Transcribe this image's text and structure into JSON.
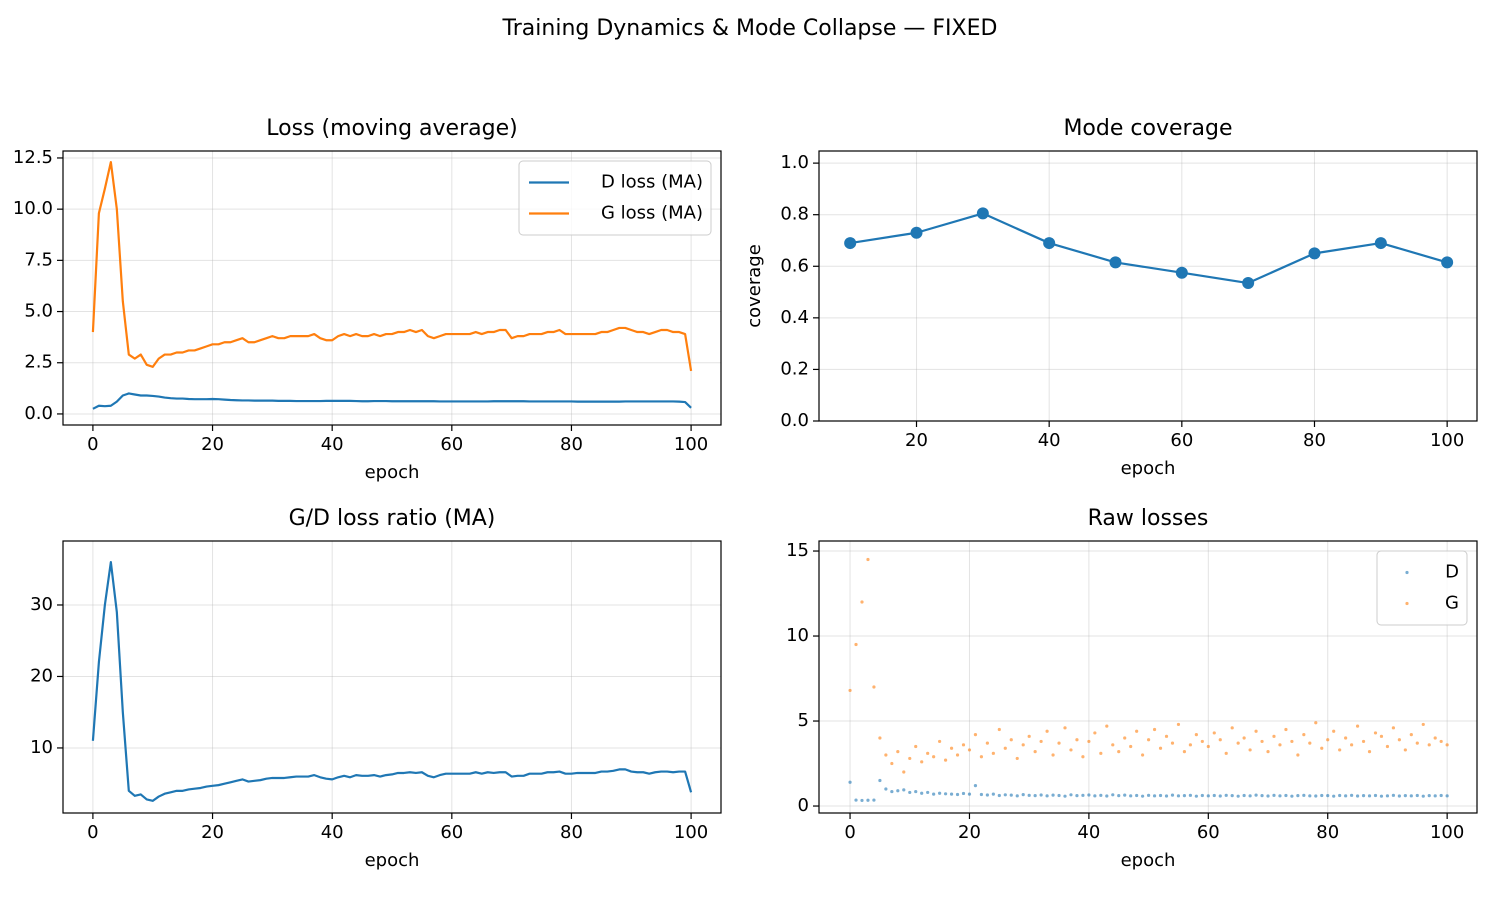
{
  "title": "Training Dynamics & Mode Collapse — FIXED",
  "chart_data": [
    {
      "type": "line",
      "title": "Loss (moving average)",
      "xlabel": "epoch",
      "x": [
        0,
        1,
        2,
        3,
        4,
        5,
        6,
        7,
        8,
        9,
        10,
        11,
        12,
        13,
        14,
        15,
        16,
        17,
        18,
        19,
        20,
        21,
        22,
        23,
        24,
        25,
        26,
        27,
        28,
        29,
        30,
        31,
        32,
        33,
        34,
        35,
        36,
        37,
        38,
        39,
        40,
        41,
        42,
        43,
        44,
        45,
        46,
        47,
        48,
        49,
        50,
        51,
        52,
        53,
        54,
        55,
        56,
        57,
        58,
        59,
        60,
        61,
        62,
        63,
        64,
        65,
        66,
        67,
        68,
        69,
        70,
        71,
        72,
        73,
        74,
        75,
        76,
        77,
        78,
        79,
        80,
        81,
        82,
        83,
        84,
        85,
        86,
        87,
        88,
        89,
        90,
        91,
        92,
        93,
        94,
        95,
        96,
        97,
        98,
        99,
        100
      ],
      "series": [
        {
          "name": "D loss (MA)",
          "color": "#1f77b4",
          "values": [
            0.25,
            0.4,
            0.38,
            0.4,
            0.6,
            0.9,
            1.0,
            0.95,
            0.9,
            0.9,
            0.88,
            0.85,
            0.8,
            0.77,
            0.75,
            0.75,
            0.73,
            0.72,
            0.72,
            0.72,
            0.73,
            0.72,
            0.7,
            0.68,
            0.67,
            0.66,
            0.66,
            0.65,
            0.65,
            0.65,
            0.65,
            0.64,
            0.64,
            0.64,
            0.63,
            0.63,
            0.63,
            0.63,
            0.63,
            0.64,
            0.64,
            0.64,
            0.64,
            0.64,
            0.63,
            0.62,
            0.62,
            0.63,
            0.63,
            0.63,
            0.62,
            0.62,
            0.62,
            0.62,
            0.62,
            0.62,
            0.62,
            0.62,
            0.61,
            0.61,
            0.61,
            0.61,
            0.61,
            0.61,
            0.61,
            0.61,
            0.61,
            0.62,
            0.62,
            0.62,
            0.62,
            0.62,
            0.62,
            0.61,
            0.61,
            0.61,
            0.61,
            0.61,
            0.61,
            0.61,
            0.61,
            0.6,
            0.6,
            0.6,
            0.6,
            0.6,
            0.6,
            0.6,
            0.6,
            0.61,
            0.61,
            0.61,
            0.61,
            0.61,
            0.61,
            0.61,
            0.61,
            0.61,
            0.6,
            0.58,
            0.3
          ]
        },
        {
          "name": "G loss (MA)",
          "color": "#ff7f0e",
          "values": [
            4.0,
            9.8,
            11.0,
            12.3,
            10.0,
            5.5,
            2.9,
            2.7,
            2.9,
            2.4,
            2.3,
            2.7,
            2.9,
            2.9,
            3.0,
            3.0,
            3.1,
            3.1,
            3.2,
            3.3,
            3.4,
            3.4,
            3.5,
            3.5,
            3.6,
            3.7,
            3.5,
            3.5,
            3.6,
            3.7,
            3.8,
            3.7,
            3.7,
            3.8,
            3.8,
            3.8,
            3.8,
            3.9,
            3.7,
            3.6,
            3.6,
            3.8,
            3.9,
            3.8,
            3.9,
            3.8,
            3.8,
            3.9,
            3.8,
            3.9,
            3.9,
            4.0,
            4.0,
            4.1,
            4.0,
            4.1,
            3.8,
            3.7,
            3.8,
            3.9,
            3.9,
            3.9,
            3.9,
            3.9,
            4.0,
            3.9,
            4.0,
            4.0,
            4.1,
            4.1,
            3.7,
            3.8,
            3.8,
            3.9,
            3.9,
            3.9,
            4.0,
            4.0,
            4.1,
            3.9,
            3.9,
            3.9,
            3.9,
            3.9,
            3.9,
            4.0,
            4.0,
            4.1,
            4.2,
            4.2,
            4.1,
            4.0,
            4.0,
            3.9,
            4.0,
            4.1,
            4.1,
            4.0,
            4.0,
            3.9,
            2.1
          ]
        }
      ],
      "xlim": [
        -5,
        105
      ],
      "ylim": [
        -0.54,
        12.84
      ],
      "xticks": [
        0,
        20,
        40,
        60,
        80,
        100
      ],
      "yticks": [
        {
          "value": 0,
          "label": "0.0"
        },
        {
          "value": 2.5,
          "label": "2.5"
        },
        {
          "value": 5,
          "label": "5.0"
        },
        {
          "value": 7.5,
          "label": "7.5"
        },
        {
          "value": 10,
          "label": "10.0"
        },
        {
          "value": 12.5,
          "label": "12.5"
        }
      ],
      "grid": true,
      "legend": "upper right"
    },
    {
      "type": "line",
      "title": "Mode coverage",
      "xlabel": "epoch",
      "ylabel": "coverage",
      "markers": true,
      "x": [
        10,
        20,
        30,
        40,
        50,
        60,
        70,
        80,
        90,
        100
      ],
      "series": [
        {
          "name": "coverage",
          "color": "#1f77b4",
          "values": [
            0.69,
            0.73,
            0.805,
            0.69,
            0.615,
            0.575,
            0.535,
            0.65,
            0.69,
            0.615
          ]
        }
      ],
      "xlim": [
        5.3,
        104.5
      ],
      "ylim": [
        0,
        1.047
      ],
      "xticks": [
        20,
        40,
        60,
        80,
        100
      ],
      "yticks": [
        {
          "value": 0,
          "label": "0.0"
        },
        {
          "value": 0.2,
          "label": "0.2"
        },
        {
          "value": 0.4,
          "label": "0.4"
        },
        {
          "value": 0.6,
          "label": "0.6"
        },
        {
          "value": 0.8,
          "label": "0.8"
        },
        {
          "value": 1,
          "label": "1.0"
        }
      ],
      "grid": true
    },
    {
      "type": "line",
      "title": "G/D loss ratio (MA)",
      "xlabel": "epoch",
      "x": [
        0,
        1,
        2,
        3,
        4,
        5,
        6,
        7,
        8,
        9,
        10,
        11,
        12,
        13,
        14,
        15,
        16,
        17,
        18,
        19,
        20,
        21,
        22,
        23,
        24,
        25,
        26,
        27,
        28,
        29,
        30,
        31,
        32,
        33,
        34,
        35,
        36,
        37,
        38,
        39,
        40,
        41,
        42,
        43,
        44,
        45,
        46,
        47,
        48,
        49,
        50,
        51,
        52,
        53,
        54,
        55,
        56,
        57,
        58,
        59,
        60,
        61,
        62,
        63,
        64,
        65,
        66,
        67,
        68,
        69,
        70,
        71,
        72,
        73,
        74,
        75,
        76,
        77,
        78,
        79,
        80,
        81,
        82,
        83,
        84,
        85,
        86,
        87,
        88,
        89,
        90,
        91,
        92,
        93,
        94,
        95,
        96,
        97,
        98,
        99,
        100
      ],
      "series": [
        {
          "name": "ratio",
          "color": "#1f77b4",
          "values": [
            11,
            22,
            30,
            36,
            29,
            15,
            4,
            3.3,
            3.5,
            2.8,
            2.6,
            3.2,
            3.6,
            3.8,
            4.0,
            4.0,
            4.2,
            4.3,
            4.4,
            4.6,
            4.7,
            4.8,
            5.0,
            5.2,
            5.4,
            5.6,
            5.3,
            5.4,
            5.5,
            5.7,
            5.8,
            5.8,
            5.8,
            5.9,
            6.0,
            6.0,
            6.0,
            6.2,
            5.9,
            5.7,
            5.6,
            5.9,
            6.1,
            5.9,
            6.2,
            6.1,
            6.1,
            6.2,
            6.0,
            6.2,
            6.3,
            6.5,
            6.5,
            6.6,
            6.5,
            6.6,
            6.1,
            5.9,
            6.2,
            6.4,
            6.4,
            6.4,
            6.4,
            6.4,
            6.6,
            6.4,
            6.6,
            6.5,
            6.6,
            6.6,
            6.0,
            6.1,
            6.1,
            6.4,
            6.4,
            6.4,
            6.6,
            6.6,
            6.7,
            6.4,
            6.4,
            6.5,
            6.5,
            6.5,
            6.5,
            6.7,
            6.7,
            6.8,
            7.0,
            7.0,
            6.7,
            6.6,
            6.6,
            6.4,
            6.6,
            6.7,
            6.7,
            6.6,
            6.7,
            6.7,
            3.8
          ]
        }
      ],
      "xlim": [
        -5,
        105
      ],
      "ylim": [
        0.9,
        38.95
      ],
      "xticks": [
        0,
        20,
        40,
        60,
        80,
        100
      ],
      "yticks": [
        10,
        20,
        30
      ],
      "grid": true
    },
    {
      "type": "scatter",
      "title": "Raw losses",
      "xlabel": "epoch",
      "x": [
        0,
        1,
        2,
        3,
        4,
        5,
        6,
        7,
        8,
        9,
        10,
        11,
        12,
        13,
        14,
        15,
        16,
        17,
        18,
        19,
        20,
        21,
        22,
        23,
        24,
        25,
        26,
        27,
        28,
        29,
        30,
        31,
        32,
        33,
        34,
        35,
        36,
        37,
        38,
        39,
        40,
        41,
        42,
        43,
        44,
        45,
        46,
        47,
        48,
        49,
        50,
        51,
        52,
        53,
        54,
        55,
        56,
        57,
        58,
        59,
        60,
        61,
        62,
        63,
        64,
        65,
        66,
        67,
        68,
        69,
        70,
        71,
        72,
        73,
        74,
        75,
        76,
        77,
        78,
        79,
        80,
        81,
        82,
        83,
        84,
        85,
        86,
        87,
        88,
        89,
        90,
        91,
        92,
        93,
        94,
        95,
        96,
        97,
        98,
        99,
        100
      ],
      "series": [
        {
          "name": "D",
          "color": "#1f77b4",
          "values": [
            1.4,
            0.35,
            0.33,
            0.34,
            0.35,
            1.5,
            1.0,
            0.85,
            0.9,
            0.95,
            0.8,
            0.85,
            0.75,
            0.8,
            0.7,
            0.75,
            0.72,
            0.7,
            0.68,
            0.74,
            0.7,
            1.2,
            0.68,
            0.65,
            0.7,
            0.62,
            0.66,
            0.64,
            0.6,
            0.67,
            0.63,
            0.61,
            0.65,
            0.6,
            0.64,
            0.62,
            0.58,
            0.66,
            0.61,
            0.63,
            0.65,
            0.6,
            0.63,
            0.59,
            0.66,
            0.61,
            0.64,
            0.6,
            0.62,
            0.58,
            0.63,
            0.6,
            0.62,
            0.59,
            0.64,
            0.6,
            0.61,
            0.63,
            0.58,
            0.62,
            0.6,
            0.62,
            0.59,
            0.63,
            0.61,
            0.58,
            0.62,
            0.6,
            0.64,
            0.61,
            0.59,
            0.63,
            0.6,
            0.62,
            0.58,
            0.61,
            0.63,
            0.6,
            0.59,
            0.62,
            0.61,
            0.58,
            0.62,
            0.6,
            0.63,
            0.59,
            0.61,
            0.6,
            0.62,
            0.58,
            0.6,
            0.63,
            0.59,
            0.61,
            0.6,
            0.62,
            0.58,
            0.61,
            0.6,
            0.62,
            0.6
          ]
        },
        {
          "name": "G",
          "color": "#ff7f0e",
          "values": [
            6.8,
            9.5,
            12.0,
            14.5,
            7.0,
            4.0,
            3.0,
            2.5,
            3.2,
            2.0,
            2.8,
            3.5,
            2.6,
            3.1,
            2.9,
            3.8,
            2.7,
            3.4,
            3.0,
            3.6,
            3.3,
            4.2,
            2.9,
            3.7,
            3.1,
            4.5,
            3.4,
            3.9,
            2.8,
            3.6,
            4.1,
            3.2,
            3.8,
            4.4,
            3.0,
            3.7,
            4.6,
            3.3,
            3.9,
            2.9,
            3.8,
            4.3,
            3.1,
            4.7,
            3.6,
            3.2,
            4.0,
            3.5,
            4.4,
            3.0,
            3.9,
            4.5,
            3.4,
            4.1,
            3.7,
            4.8,
            3.2,
            3.6,
            4.2,
            3.8,
            3.5,
            4.3,
            3.9,
            3.1,
            4.6,
            3.7,
            4.0,
            3.3,
            4.4,
            3.8,
            3.2,
            4.1,
            3.6,
            4.5,
            3.8,
            3.0,
            4.2,
            3.7,
            4.9,
            3.4,
            3.9,
            4.4,
            3.3,
            4.0,
            3.6,
            4.7,
            3.8,
            3.2,
            4.3,
            4.1,
            3.5,
            4.6,
            3.9,
            3.3,
            4.2,
            3.7,
            4.8,
            3.6,
            4.0,
            3.8,
            3.6
          ]
        }
      ],
      "xlim": [
        -5.2,
        105
      ],
      "ylim": [
        -0.41,
        15.59
      ],
      "xticks": [
        0,
        20,
        40,
        60,
        80,
        100
      ],
      "yticks": [
        0,
        5,
        10,
        15
      ],
      "grid": true,
      "legend": "upper right"
    }
  ]
}
